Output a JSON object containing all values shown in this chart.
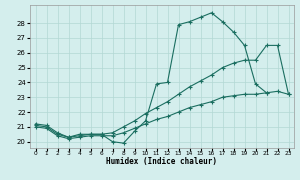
{
  "xlabel": "Humidex (Indice chaleur)",
  "bg_color": "#d4eeed",
  "grid_color": "#b2d8d4",
  "line_color": "#1a6e60",
  "xlim_min": -0.5,
  "xlim_max": 23.5,
  "ylim_min": 19.6,
  "ylim_max": 29.2,
  "xticks": [
    0,
    1,
    2,
    3,
    4,
    5,
    6,
    7,
    8,
    9,
    10,
    11,
    12,
    13,
    14,
    15,
    16,
    17,
    18,
    19,
    20,
    21,
    22,
    23
  ],
  "yticks": [
    20,
    21,
    22,
    23,
    24,
    25,
    26,
    27,
    28
  ],
  "line1_x": [
    0,
    1,
    2,
    3,
    4,
    5,
    6,
    7,
    8,
    9,
    10,
    11,
    12,
    13,
    14,
    15,
    16,
    17,
    18,
    19,
    20,
    21
  ],
  "line1_y": [
    21.2,
    21.1,
    20.6,
    20.3,
    20.5,
    20.5,
    20.5,
    20.0,
    19.9,
    20.7,
    21.4,
    23.9,
    24.0,
    27.9,
    28.1,
    28.4,
    28.7,
    28.1,
    27.4,
    26.5,
    23.9,
    23.3
  ],
  "line2_x": [
    0,
    1,
    2,
    3,
    4,
    5,
    6,
    7,
    8,
    9,
    10,
    11,
    12,
    13,
    14,
    15,
    16,
    17,
    18,
    19,
    20,
    21,
    22,
    23
  ],
  "line2_y": [
    21.1,
    21.0,
    20.5,
    20.3,
    20.4,
    20.5,
    20.5,
    20.6,
    21.0,
    21.4,
    21.9,
    22.3,
    22.7,
    23.2,
    23.7,
    24.1,
    24.5,
    25.0,
    25.3,
    25.5,
    25.5,
    26.5,
    26.5,
    23.2
  ],
  "line3_x": [
    0,
    1,
    2,
    3,
    4,
    5,
    6,
    7,
    8,
    9,
    10,
    11,
    12,
    13,
    14,
    15,
    16,
    17,
    18,
    19,
    20,
    21,
    22,
    23
  ],
  "line3_y": [
    21.0,
    20.9,
    20.4,
    20.2,
    20.3,
    20.4,
    20.4,
    20.4,
    20.6,
    20.9,
    21.2,
    21.5,
    21.7,
    22.0,
    22.3,
    22.5,
    22.7,
    23.0,
    23.1,
    23.2,
    23.2,
    23.3,
    23.4,
    23.2
  ]
}
